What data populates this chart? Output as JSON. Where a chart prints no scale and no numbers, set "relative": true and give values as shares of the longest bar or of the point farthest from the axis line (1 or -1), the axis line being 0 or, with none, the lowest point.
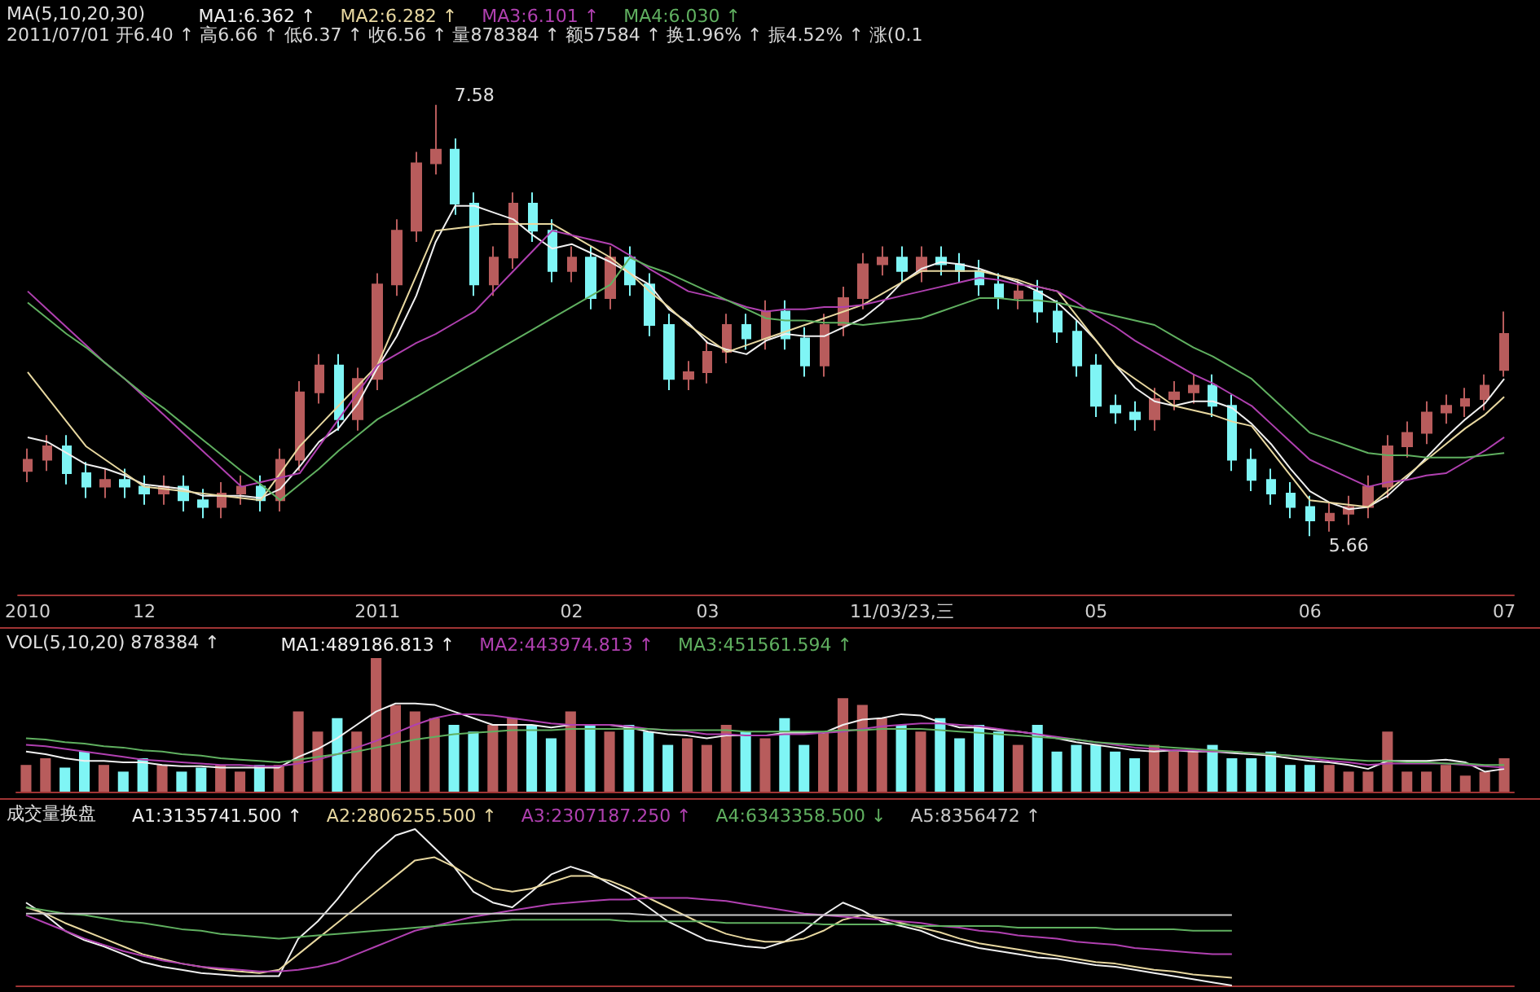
{
  "chart_data": [
    {
      "type": "candlestick",
      "title": "MA(5,10,20,30)",
      "subtitle": "2011/07/01 开6.40 ↑ 高6.66 ↑ 低6.37 ↑ 收6.56 ↑ 量878384 ↑ 额57584 ↑ 换1.96% ↑ 振4.52% ↑ 涨(0.1",
      "categories": [
        "2010",
        null,
        null,
        null,
        null,
        null,
        "12",
        null,
        null,
        null,
        null,
        null,
        null,
        null,
        null,
        null,
        null,
        null,
        "2011",
        null,
        null,
        null,
        null,
        null,
        null,
        null,
        null,
        null,
        "02",
        null,
        null,
        null,
        null,
        null,
        null,
        "03",
        null,
        null,
        null,
        null,
        null,
        null,
        null,
        null,
        null,
        "11/03/23,三",
        null,
        null,
        null,
        null,
        null,
        null,
        null,
        null,
        null,
        "05",
        null,
        null,
        null,
        null,
        null,
        null,
        null,
        null,
        null,
        null,
        "06",
        null,
        null,
        null,
        null,
        null,
        null,
        null,
        null,
        null,
        "07"
      ],
      "ohlc": [
        [
          5.95,
          6.05,
          5.9,
          6.0
        ],
        [
          6.0,
          6.11,
          5.95,
          6.06
        ],
        [
          6.06,
          6.11,
          5.89,
          5.94
        ],
        [
          5.94,
          5.99,
          5.83,
          5.88
        ],
        [
          5.88,
          5.96,
          5.83,
          5.91
        ],
        [
          5.91,
          5.96,
          5.83,
          5.88
        ],
        [
          5.88,
          5.93,
          5.8,
          5.85
        ],
        [
          5.85,
          5.93,
          5.8,
          5.88
        ],
        [
          5.88,
          5.93,
          5.77,
          5.82
        ],
        [
          5.82,
          5.87,
          5.74,
          5.79
        ],
        [
          5.79,
          5.9,
          5.74,
          5.85
        ],
        [
          5.85,
          5.93,
          5.8,
          5.88
        ],
        [
          5.88,
          5.93,
          5.77,
          5.82
        ],
        [
          5.82,
          6.05,
          5.77,
          6.0
        ],
        [
          6.0,
          6.35,
          5.95,
          6.3
        ],
        [
          6.3,
          6.47,
          6.25,
          6.42
        ],
        [
          6.42,
          6.47,
          6.13,
          6.18
        ],
        [
          6.18,
          6.41,
          6.13,
          6.36
        ],
        [
          6.36,
          6.83,
          6.31,
          6.78
        ],
        [
          6.78,
          7.07,
          6.73,
          7.02
        ],
        [
          7.02,
          7.37,
          6.97,
          7.32
        ],
        [
          7.32,
          7.58,
          7.27,
          7.38
        ],
        [
          7.38,
          7.43,
          7.09,
          7.14
        ],
        [
          7.14,
          7.19,
          6.73,
          6.78
        ],
        [
          6.78,
          6.95,
          6.73,
          6.9
        ],
        [
          6.9,
          7.19,
          6.85,
          7.14
        ],
        [
          7.14,
          7.19,
          6.97,
          7.02
        ],
        [
          7.02,
          7.07,
          6.79,
          6.84
        ],
        [
          6.84,
          6.95,
          6.79,
          6.9
        ],
        [
          6.9,
          6.95,
          6.67,
          6.72
        ],
        [
          6.72,
          6.95,
          6.67,
          6.9
        ],
        [
          6.9,
          6.95,
          6.73,
          6.78
        ],
        [
          6.78,
          6.83,
          6.55,
          6.6
        ],
        [
          6.6,
          6.65,
          6.31,
          6.36
        ],
        [
          6.36,
          6.44,
          6.31,
          6.39
        ],
        [
          6.39,
          6.53,
          6.34,
          6.48
        ],
        [
          6.48,
          6.65,
          6.43,
          6.6
        ],
        [
          6.6,
          6.65,
          6.49,
          6.54
        ],
        [
          6.54,
          6.71,
          6.49,
          6.66
        ],
        [
          6.66,
          6.71,
          6.49,
          6.54
        ],
        [
          6.54,
          6.59,
          6.37,
          6.42
        ],
        [
          6.42,
          6.65,
          6.37,
          6.6
        ],
        [
          6.6,
          6.77,
          6.55,
          6.72
        ],
        [
          6.72,
          6.92,
          6.67,
          6.87
        ],
        [
          6.87,
          6.95,
          6.82,
          6.9
        ],
        [
          6.9,
          6.95,
          6.79,
          6.84
        ],
        [
          6.84,
          6.95,
          6.79,
          6.9
        ],
        [
          6.9,
          6.95,
          6.82,
          6.87
        ],
        [
          6.87,
          6.92,
          6.79,
          6.84
        ],
        [
          6.84,
          6.89,
          6.73,
          6.78
        ],
        [
          6.78,
          6.83,
          6.67,
          6.72
        ],
        [
          6.72,
          6.8,
          6.67,
          6.75
        ],
        [
          6.75,
          6.8,
          6.61,
          6.66
        ],
        [
          6.66,
          6.71,
          6.52,
          6.57
        ],
        [
          6.57,
          6.62,
          6.37,
          6.42
        ],
        [
          6.42,
          6.47,
          6.19,
          6.24
        ],
        [
          6.24,
          6.29,
          6.16,
          6.21
        ],
        [
          6.21,
          6.26,
          6.13,
          6.18
        ],
        [
          6.18,
          6.32,
          6.13,
          6.27
        ],
        [
          6.27,
          6.35,
          6.22,
          6.3
        ],
        [
          6.3,
          6.38,
          6.25,
          6.33
        ],
        [
          6.33,
          6.38,
          6.19,
          6.24
        ],
        [
          6.24,
          6.29,
          5.95,
          6.0
        ],
        [
          6.0,
          6.05,
          5.86,
          5.91
        ],
        [
          5.91,
          5.96,
          5.8,
          5.85
        ],
        [
          5.85,
          5.9,
          5.74,
          5.79
        ],
        [
          5.79,
          5.84,
          5.66,
          5.73
        ],
        [
          5.73,
          5.81,
          5.68,
          5.76
        ],
        [
          5.76,
          5.84,
          5.71,
          5.79
        ],
        [
          5.79,
          5.93,
          5.74,
          5.88
        ],
        [
          5.88,
          6.11,
          5.83,
          6.06
        ],
        [
          6.06,
          6.17,
          6.01,
          6.12
        ],
        [
          6.12,
          6.26,
          6.07,
          6.21
        ],
        [
          6.21,
          6.29,
          6.16,
          6.24
        ],
        [
          6.24,
          6.32,
          6.19,
          6.27
        ],
        [
          6.27,
          6.38,
          6.22,
          6.33
        ],
        [
          6.4,
          6.66,
          6.37,
          6.56
        ]
      ],
      "colors": [
        "#b85c5c",
        "#b85c5c",
        "#7ff5f5",
        "#7ff5f5",
        "#b85c5c",
        "#7ff5f5",
        "#7ff5f5",
        "#b85c5c",
        "#7ff5f5",
        "#7ff5f5",
        "#b85c5c",
        "#b85c5c",
        "#7ff5f5",
        "#b85c5c",
        "#b85c5c",
        "#b85c5c",
        "#7ff5f5",
        "#b85c5c",
        "#b85c5c",
        "#b85c5c",
        "#b85c5c",
        "#b85c5c",
        "#7ff5f5",
        "#7ff5f5",
        "#b85c5c",
        "#b85c5c",
        "#7ff5f5",
        "#7ff5f5",
        "#b85c5c",
        "#7ff5f5",
        "#b85c5c",
        "#7ff5f5",
        "#7ff5f5",
        "#7ff5f5",
        "#b85c5c",
        "#b85c5c",
        "#b85c5c",
        "#7ff5f5",
        "#b85c5c",
        "#7ff5f5",
        "#7ff5f5",
        "#b85c5c",
        "#b85c5c",
        "#b85c5c",
        "#b85c5c",
        "#7ff5f5",
        "#b85c5c",
        "#7ff5f5",
        "#7ff5f5",
        "#7ff5f5",
        "#7ff5f5",
        "#b85c5c",
        "#7ff5f5",
        "#7ff5f5",
        "#7ff5f5",
        "#7ff5f5",
        "#7ff5f5",
        "#7ff5f5",
        "#b85c5c",
        "#b85c5c",
        "#b85c5c",
        "#7ff5f5",
        "#7ff5f5",
        "#7ff5f5",
        "#7ff5f5",
        "#7ff5f5",
        "#7ff5f5",
        "#b85c5c",
        "#b85c5c",
        "#b85c5c",
        "#b85c5c",
        "#b85c5c",
        "#b85c5c",
        "#b85c5c",
        "#b85c5c",
        "#b85c5c",
        "#b85c5c"
      ],
      "series": [
        {
          "type": "line",
          "name": "MA1:6.362 ↑",
          "color": "#f0f0f0",
          "values": [
            6.1,
            6.08,
            6.03,
            5.98,
            5.96,
            5.93,
            5.89,
            5.88,
            5.87,
            5.84,
            5.84,
            5.84,
            5.83,
            5.87,
            5.97,
            6.08,
            6.14,
            6.25,
            6.41,
            6.55,
            6.73,
            6.97,
            7.13,
            7.13,
            7.1,
            7.07,
            7.0,
            6.94,
            6.96,
            6.92,
            6.88,
            6.83,
            6.78,
            6.67,
            6.61,
            6.52,
            6.49,
            6.47,
            6.53,
            6.56,
            6.55,
            6.55,
            6.59,
            6.63,
            6.7,
            6.79,
            6.85,
            6.88,
            6.87,
            6.85,
            6.82,
            6.79,
            6.75,
            6.7,
            6.62,
            6.53,
            6.42,
            6.32,
            6.26,
            6.24,
            6.26,
            6.26,
            6.23,
            6.16,
            6.07,
            5.96,
            5.86,
            5.81,
            5.78,
            5.79,
            5.84,
            5.92,
            6.01,
            6.1,
            6.18,
            6.25,
            6.36
          ]
        },
        {
          "type": "line",
          "name": "MA2:6.282 ↑",
          "color": "#e8d8a0",
          "values": [
            6.39,
            6.28,
            6.17,
            6.06,
            6.0,
            5.94,
            5.88,
            5.87,
            5.86,
            5.85,
            5.84,
            5.83,
            5.82,
            5.94,
            6.06,
            6.15,
            6.24,
            6.33,
            6.42,
            6.62,
            6.82,
            7.02,
            7.03,
            7.04,
            7.05,
            7.05,
            7.05,
            7.05,
            7.0,
            6.95,
            6.9,
            6.83,
            6.75,
            6.68,
            6.6,
            6.54,
            6.48,
            6.51,
            6.54,
            6.57,
            6.6,
            6.63,
            6.66,
            6.69,
            6.74,
            6.79,
            6.84,
            6.84,
            6.84,
            6.84,
            6.82,
            6.8,
            6.77,
            6.75,
            6.64,
            6.53,
            6.42,
            6.36,
            6.3,
            6.24,
            6.22,
            6.2,
            6.17,
            6.15,
            6.04,
            5.93,
            5.82,
            5.81,
            5.8,
            5.79,
            5.86,
            5.93,
            6.0,
            6.07,
            6.14,
            6.2,
            6.28
          ]
        },
        {
          "type": "line",
          "name": "MA3:6.101 ↑",
          "color": "#b040b0",
          "values": [
            6.75,
            6.67,
            6.59,
            6.51,
            6.43,
            6.36,
            6.28,
            6.2,
            6.12,
            6.04,
            5.96,
            5.88,
            5.9,
            5.92,
            5.94,
            6.06,
            6.18,
            6.3,
            6.42,
            6.47,
            6.52,
            6.56,
            6.61,
            6.66,
            6.75,
            6.84,
            6.93,
            7.02,
            7.0,
            6.98,
            6.96,
            6.91,
            6.85,
            6.8,
            6.75,
            6.73,
            6.71,
            6.68,
            6.66,
            6.67,
            6.67,
            6.68,
            6.68,
            6.69,
            6.71,
            6.73,
            6.75,
            6.77,
            6.79,
            6.81,
            6.8,
            6.78,
            6.77,
            6.75,
            6.7,
            6.64,
            6.59,
            6.53,
            6.48,
            6.43,
            6.38,
            6.34,
            6.29,
            6.24,
            6.16,
            6.08,
            6.0,
            5.96,
            5.92,
            5.88,
            5.9,
            5.91,
            5.93,
            5.94,
            5.99,
            6.04,
            6.1
          ]
        },
        {
          "type": "line",
          "name": "MA4:6.030 ↑",
          "color": "#60b060",
          "values": [
            6.7,
            6.63,
            6.56,
            6.5,
            6.43,
            6.36,
            6.29,
            6.23,
            6.16,
            6.09,
            6.02,
            5.95,
            5.89,
            5.82,
            5.89,
            5.96,
            6.04,
            6.11,
            6.18,
            6.23,
            6.28,
            6.33,
            6.38,
            6.43,
            6.48,
            6.53,
            6.58,
            6.63,
            6.68,
            6.73,
            6.78,
            6.9,
            6.86,
            6.83,
            6.79,
            6.75,
            6.71,
            6.67,
            6.63,
            6.62,
            6.62,
            6.61,
            6.61,
            6.6,
            6.61,
            6.62,
            6.63,
            6.66,
            6.69,
            6.72,
            6.72,
            6.71,
            6.71,
            6.7,
            6.68,
            6.66,
            6.64,
            6.62,
            6.6,
            6.55,
            6.5,
            6.46,
            6.41,
            6.36,
            6.28,
            6.2,
            6.12,
            6.09,
            6.06,
            6.03,
            6.02,
            6.02,
            6.01,
            6.01,
            6.01,
            6.02,
            6.03
          ]
        }
      ],
      "annotations": [
        "7.58",
        "5.66"
      ],
      "legend": "top left",
      "marker": "none",
      "tick_labels": "x"
    },
    {
      "type": "bar",
      "relative": true,
      "title": "VOL(5,10,20) 878384 ↑",
      "categories": [
        null,
        null,
        null,
        null,
        null,
        null,
        null,
        null,
        null,
        null,
        null,
        null,
        null,
        null,
        null,
        null,
        null,
        null,
        null,
        null,
        null,
        null,
        null,
        null,
        null,
        null,
        null,
        null,
        null,
        null,
        null,
        null,
        null,
        null,
        null,
        null,
        null,
        null,
        null,
        null,
        null,
        null,
        null,
        null,
        null,
        null,
        null,
        null,
        null,
        null,
        null,
        null,
        null,
        null,
        null,
        null,
        null,
        null,
        null,
        null,
        null,
        null,
        null,
        null,
        null,
        null,
        null,
        null,
        null,
        null,
        null,
        null,
        null,
        null,
        null,
        null,
        null
      ],
      "values": [
        0.2,
        0.25,
        0.18,
        0.3,
        0.2,
        0.15,
        0.25,
        0.2,
        0.15,
        0.18,
        0.2,
        0.15,
        0.2,
        0.2,
        0.6,
        0.45,
        0.55,
        0.45,
        1.0,
        0.65,
        0.6,
        0.55,
        0.5,
        0.45,
        0.5,
        0.55,
        0.5,
        0.4,
        0.6,
        0.5,
        0.45,
        0.5,
        0.45,
        0.35,
        0.4,
        0.35,
        0.5,
        0.45,
        0.4,
        0.55,
        0.35,
        0.45,
        0.7,
        0.65,
        0.55,
        0.5,
        0.45,
        0.55,
        0.4,
        0.5,
        0.45,
        0.35,
        0.5,
        0.3,
        0.35,
        0.35,
        0.3,
        0.25,
        0.35,
        0.3,
        0.3,
        0.35,
        0.25,
        0.25,
        0.3,
        0.2,
        0.2,
        0.2,
        0.15,
        0.15,
        0.45,
        0.15,
        0.15,
        0.2,
        0.12,
        0.15,
        0.25
      ],
      "colors": [
        "#b85c5c",
        "#b85c5c",
        "#7ff5f5",
        "#7ff5f5",
        "#b85c5c",
        "#7ff5f5",
        "#7ff5f5",
        "#b85c5c",
        "#7ff5f5",
        "#7ff5f5",
        "#b85c5c",
        "#b85c5c",
        "#7ff5f5",
        "#b85c5c",
        "#b85c5c",
        "#b85c5c",
        "#7ff5f5",
        "#b85c5c",
        "#b85c5c",
        "#b85c5c",
        "#b85c5c",
        "#b85c5c",
        "#7ff5f5",
        "#7ff5f5",
        "#b85c5c",
        "#b85c5c",
        "#7ff5f5",
        "#7ff5f5",
        "#b85c5c",
        "#7ff5f5",
        "#b85c5c",
        "#7ff5f5",
        "#7ff5f5",
        "#7ff5f5",
        "#b85c5c",
        "#b85c5c",
        "#b85c5c",
        "#7ff5f5",
        "#b85c5c",
        "#7ff5f5",
        "#7ff5f5",
        "#b85c5c",
        "#b85c5c",
        "#b85c5c",
        "#b85c5c",
        "#7ff5f5",
        "#b85c5c",
        "#7ff5f5",
        "#7ff5f5",
        "#7ff5f5",
        "#7ff5f5",
        "#b85c5c",
        "#7ff5f5",
        "#7ff5f5",
        "#7ff5f5",
        "#7ff5f5",
        "#7ff5f5",
        "#7ff5f5",
        "#b85c5c",
        "#b85c5c",
        "#b85c5c",
        "#7ff5f5",
        "#7ff5f5",
        "#7ff5f5",
        "#7ff5f5",
        "#7ff5f5",
        "#7ff5f5",
        "#b85c5c",
        "#b85c5c",
        "#b85c5c",
        "#b85c5c",
        "#b85c5c",
        "#b85c5c",
        "#b85c5c",
        "#b85c5c",
        "#b85c5c",
        "#b85c5c"
      ],
      "series": [
        {
          "type": "line",
          "name": "MA1:489186.813 ↑",
          "color": "#f0f0f0",
          "values": [
            0.3,
            0.28,
            0.25,
            0.23,
            0.23,
            0.22,
            0.22,
            0.2,
            0.19,
            0.19,
            0.18,
            0.18,
            0.18,
            0.18,
            0.26,
            0.32,
            0.4,
            0.5,
            0.6,
            0.66,
            0.66,
            0.65,
            0.6,
            0.55,
            0.5,
            0.5,
            0.5,
            0.48,
            0.5,
            0.5,
            0.5,
            0.48,
            0.45,
            0.43,
            0.42,
            0.4,
            0.42,
            0.42,
            0.42,
            0.44,
            0.44,
            0.44,
            0.5,
            0.54,
            0.55,
            0.58,
            0.57,
            0.52,
            0.48,
            0.48,
            0.46,
            0.45,
            0.43,
            0.4,
            0.37,
            0.35,
            0.33,
            0.31,
            0.3,
            0.31,
            0.3,
            0.3,
            0.29,
            0.28,
            0.27,
            0.25,
            0.23,
            0.22,
            0.2,
            0.17,
            0.23,
            0.23,
            0.23,
            0.24,
            0.22,
            0.15,
            0.17
          ]
        },
        {
          "type": "line",
          "name": "MA2:443974.813 ↑",
          "color": "#b040b0",
          "values": [
            0.35,
            0.34,
            0.32,
            0.3,
            0.28,
            0.26,
            0.24,
            0.23,
            0.22,
            0.21,
            0.2,
            0.2,
            0.19,
            0.19,
            0.21,
            0.24,
            0.28,
            0.33,
            0.38,
            0.44,
            0.5,
            0.55,
            0.58,
            0.58,
            0.57,
            0.55,
            0.53,
            0.51,
            0.5,
            0.5,
            0.5,
            0.49,
            0.47,
            0.46,
            0.45,
            0.43,
            0.43,
            0.42,
            0.42,
            0.43,
            0.43,
            0.44,
            0.45,
            0.47,
            0.49,
            0.5,
            0.51,
            0.51,
            0.5,
            0.49,
            0.47,
            0.45,
            0.43,
            0.41,
            0.39,
            0.37,
            0.35,
            0.33,
            0.32,
            0.31,
            0.31,
            0.3,
            0.3,
            0.29,
            0.28,
            0.27,
            0.25,
            0.23,
            0.22,
            0.2,
            0.21,
            0.21,
            0.21,
            0.21,
            0.2,
            0.19,
            0.18
          ]
        },
        {
          "type": "line",
          "name": "MA3:451561.594 ↑",
          "color": "#60b060",
          "values": [
            0.4,
            0.39,
            0.37,
            0.36,
            0.34,
            0.33,
            0.31,
            0.3,
            0.28,
            0.27,
            0.25,
            0.24,
            0.23,
            0.22,
            0.24,
            0.26,
            0.28,
            0.3,
            0.33,
            0.36,
            0.39,
            0.41,
            0.43,
            0.44,
            0.45,
            0.46,
            0.46,
            0.46,
            0.47,
            0.47,
            0.47,
            0.47,
            0.47,
            0.46,
            0.46,
            0.46,
            0.46,
            0.45,
            0.45,
            0.45,
            0.45,
            0.45,
            0.46,
            0.46,
            0.47,
            0.47,
            0.47,
            0.46,
            0.45,
            0.44,
            0.43,
            0.42,
            0.41,
            0.4,
            0.39,
            0.37,
            0.36,
            0.35,
            0.34,
            0.33,
            0.32,
            0.31,
            0.3,
            0.29,
            0.28,
            0.27,
            0.26,
            0.25,
            0.24,
            0.23,
            0.23,
            0.22,
            0.22,
            0.21,
            0.21,
            0.2,
            0.2
          ]
        }
      ],
      "legend": "top left",
      "marker": "none",
      "tick_labels": false
    },
    {
      "type": "line",
      "relative": true,
      "title": "成交量换盘",
      "categories": [
        null,
        null,
        null,
        null,
        null,
        null,
        null,
        null,
        null,
        null,
        null,
        null,
        null,
        null,
        null,
        null,
        null,
        null,
        null,
        null,
        null,
        null,
        null,
        null,
        null,
        null,
        null,
        null,
        null,
        null,
        null,
        null,
        null,
        null,
        null,
        null,
        null,
        null,
        null,
        null,
        null,
        null,
        null,
        null,
        null,
        null,
        null,
        null,
        null,
        null,
        null,
        null,
        null,
        null,
        null,
        null,
        null,
        null,
        null,
        null,
        null,
        null,
        null,
        null,
        null,
        null,
        null,
        null,
        null,
        null,
        null,
        null,
        null,
        null,
        null,
        null,
        null
      ],
      "series": [
        {
          "name": "A1:3135741.500 ↑",
          "color": "#f0f0f0",
          "values": [
            0.53,
            0.45,
            0.35,
            0.29,
            0.25,
            0.2,
            0.15,
            0.12,
            0.1,
            0.08,
            0.07,
            0.06,
            0.06,
            0.06,
            0.3,
            0.41,
            0.55,
            0.71,
            0.85,
            0.96,
            1.0,
            0.88,
            0.76,
            0.6,
            0.53,
            0.5,
            0.6,
            0.71,
            0.76,
            0.72,
            0.65,
            0.59,
            0.5,
            0.41,
            0.35,
            0.29,
            0.27,
            0.25,
            0.24,
            0.28,
            0.35,
            0.45,
            0.53,
            0.48,
            0.41,
            0.38,
            0.35,
            0.3,
            0.27,
            0.24,
            0.22,
            0.2,
            0.18,
            0.17,
            0.15,
            0.13,
            0.12,
            0.1,
            0.08,
            0.06,
            0.04,
            0.02,
            0,
            null,
            null,
            null,
            null,
            null,
            null,
            null,
            null,
            null,
            null,
            null,
            null,
            null,
            null
          ]
        },
        {
          "name": "A2:2806255.500 ↑",
          "color": "#e8d8a0",
          "values": [
            0.5,
            0.46,
            0.4,
            0.35,
            0.3,
            0.25,
            0.2,
            0.17,
            0.14,
            0.12,
            0.1,
            0.09,
            0.08,
            0.1,
            0.2,
            0.3,
            0.4,
            0.5,
            0.6,
            0.7,
            0.8,
            0.82,
            0.76,
            0.68,
            0.62,
            0.6,
            0.62,
            0.66,
            0.7,
            0.7,
            0.67,
            0.62,
            0.56,
            0.5,
            0.44,
            0.38,
            0.33,
            0.3,
            0.28,
            0.28,
            0.3,
            0.35,
            0.42,
            0.45,
            0.43,
            0.4,
            0.37,
            0.34,
            0.3,
            0.27,
            0.25,
            0.23,
            0.21,
            0.19,
            0.17,
            0.15,
            0.14,
            0.12,
            0.1,
            0.09,
            0.07,
            0.06,
            0.05,
            null,
            null,
            null,
            null,
            null,
            null,
            null,
            null,
            null,
            null,
            null,
            null,
            null,
            null
          ]
        },
        {
          "name": "A3:2307187.250 ↑",
          "color": "#b040b0",
          "values": [
            0.45,
            0.4,
            0.35,
            0.3,
            0.26,
            0.22,
            0.19,
            0.16,
            0.14,
            0.12,
            0.11,
            0.1,
            0.09,
            0.09,
            0.1,
            0.12,
            0.15,
            0.2,
            0.25,
            0.3,
            0.35,
            0.38,
            0.41,
            0.44,
            0.46,
            0.48,
            0.5,
            0.52,
            0.53,
            0.54,
            0.55,
            0.55,
            0.56,
            0.56,
            0.56,
            0.55,
            0.54,
            0.52,
            0.5,
            0.48,
            0.46,
            0.45,
            0.44,
            0.43,
            0.42,
            0.41,
            0.4,
            0.38,
            0.37,
            0.35,
            0.34,
            0.32,
            0.31,
            0.3,
            0.28,
            0.27,
            0.26,
            0.24,
            0.23,
            0.22,
            0.21,
            0.2,
            0.2,
            null,
            null,
            null,
            null,
            null,
            null,
            null,
            null,
            null,
            null,
            null,
            null,
            null,
            null
          ]
        },
        {
          "name": "A4:6343358.500 ↓",
          "color": "#60b060",
          "values": [
            0.5,
            0.48,
            0.46,
            0.45,
            0.43,
            0.41,
            0.4,
            0.38,
            0.36,
            0.35,
            0.33,
            0.32,
            0.31,
            0.3,
            0.31,
            0.32,
            0.33,
            0.34,
            0.35,
            0.36,
            0.37,
            0.38,
            0.39,
            0.4,
            0.41,
            0.42,
            0.42,
            0.42,
            0.42,
            0.42,
            0.42,
            0.41,
            0.41,
            0.41,
            0.41,
            0.41,
            0.4,
            0.4,
            0.4,
            0.4,
            0.4,
            0.39,
            0.39,
            0.39,
            0.39,
            0.39,
            0.38,
            0.38,
            0.38,
            0.38,
            0.38,
            0.37,
            0.37,
            0.37,
            0.37,
            0.37,
            0.36,
            0.36,
            0.36,
            0.36,
            0.35,
            0.35,
            0.35,
            null,
            null,
            null,
            null,
            null,
            null,
            null,
            null,
            null,
            null,
            null,
            null,
            null,
            null
          ]
        },
        {
          "name": "A5:8356472 ↑",
          "color": "#c8c8c8",
          "values": [
            0.46,
            0.46,
            0.46,
            0.46,
            0.46,
            0.46,
            0.46,
            0.46,
            0.46,
            0.46,
            0.46,
            0.46,
            0.46,
            0.46,
            0.46,
            0.46,
            0.46,
            0.46,
            0.46,
            0.46,
            0.46,
            0.46,
            0.46,
            0.46,
            0.46,
            0.46,
            0.46,
            0.46,
            0.46,
            0.46,
            0.46,
            0.46,
            0.45,
            0.45,
            0.45,
            0.45,
            0.45,
            0.45,
            0.45,
            0.45,
            0.45,
            0.45,
            0.45,
            0.45,
            0.45,
            0.45,
            0.45,
            0.45,
            0.45,
            0.45,
            0.45,
            0.45,
            0.45,
            0.45,
            0.45,
            0.45,
            0.45,
            0.45,
            0.45,
            0.45,
            0.45,
            0.45,
            0.45,
            null,
            null,
            null,
            null,
            null,
            null,
            null,
            null,
            null,
            null,
            null,
            null,
            null,
            null
          ]
        }
      ],
      "legend": "top left",
      "marker": "none",
      "tick_labels": false
    }
  ]
}
